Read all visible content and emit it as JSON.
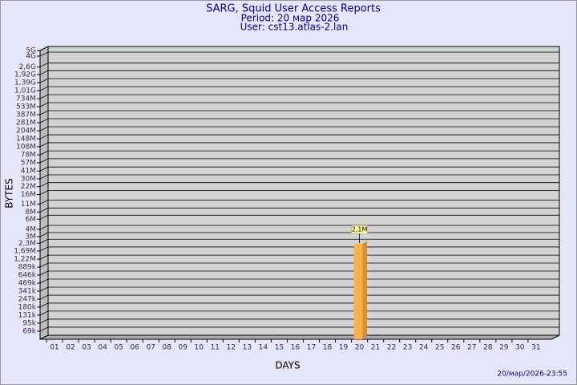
{
  "chart_data": {
    "type": "bar",
    "title": "SARG, Squid User Access Reports",
    "subtitle": [
      "Period: 20 мар 2026",
      "User: cst13.atlas-2.lan"
    ],
    "x_label": "DAYS",
    "y_label": "BYTES",
    "timestamp": "20/мар/2026-23:55",
    "categories": [
      "01",
      "02",
      "03",
      "04",
      "05",
      "06",
      "07",
      "08",
      "09",
      "10",
      "11",
      "12",
      "13",
      "14",
      "15",
      "16",
      "17",
      "18",
      "19",
      "20",
      "21",
      "22",
      "23",
      "24",
      "25",
      "26",
      "27",
      "28",
      "29",
      "30",
      "31"
    ],
    "values": [
      null,
      null,
      null,
      null,
      null,
      null,
      null,
      null,
      null,
      null,
      null,
      null,
      null,
      null,
      null,
      null,
      null,
      null,
      null,
      2100000,
      null,
      null,
      null,
      null,
      null,
      null,
      null,
      null,
      null,
      null,
      null
    ],
    "value_labels": [
      null,
      null,
      null,
      null,
      null,
      null,
      null,
      null,
      null,
      null,
      null,
      null,
      null,
      null,
      null,
      null,
      null,
      null,
      null,
      "2,1M",
      null,
      null,
      null,
      null,
      null,
      null,
      null,
      null,
      null,
      null,
      null
    ],
    "color": "#f6b24f",
    "log_scale": true,
    "grid": true,
    "ylim": [
      50000,
      5000000000
    ],
    "yticks": [
      {
        "value": 69000,
        "label": "69k"
      },
      {
        "value": 95000,
        "label": "95k"
      },
      {
        "value": 131000,
        "label": "131k"
      },
      {
        "value": 180000,
        "label": "180k"
      },
      {
        "value": 247000,
        "label": "247k"
      },
      {
        "value": 341000,
        "label": "341k"
      },
      {
        "value": 469000,
        "label": "469k"
      },
      {
        "value": 646000,
        "label": "646k"
      },
      {
        "value": 889000,
        "label": "889k"
      },
      {
        "value": 1220000,
        "label": "1,22M"
      },
      {
        "value": 1690000,
        "label": "1,69M"
      },
      {
        "value": 2300000,
        "label": "2,3M"
      },
      {
        "value": 3000000,
        "label": "3M"
      },
      {
        "value": 4000000,
        "label": "4M"
      },
      {
        "value": 6000000,
        "label": "6M"
      },
      {
        "value": 8000000,
        "label": "8M"
      },
      {
        "value": 11000000,
        "label": "11M"
      },
      {
        "value": 16000000,
        "label": "16M"
      },
      {
        "value": 22000000,
        "label": "22M"
      },
      {
        "value": 30000000,
        "label": "30M"
      },
      {
        "value": 41000000,
        "label": "41M"
      },
      {
        "value": 57000000,
        "label": "57M"
      },
      {
        "value": 78000000,
        "label": "78M"
      },
      {
        "value": 108000000,
        "label": "108M"
      },
      {
        "value": 148000000,
        "label": "148M"
      },
      {
        "value": 204000000,
        "label": "204M"
      },
      {
        "value": 281000000,
        "label": "281M"
      },
      {
        "value": 387000000,
        "label": "387M"
      },
      {
        "value": 533000000,
        "label": "533M"
      },
      {
        "value": 734000000,
        "label": "734M"
      },
      {
        "value": 1010000000,
        "label": "1,01G"
      },
      {
        "value": 1390000000,
        "label": "1,39G"
      },
      {
        "value": 1920000000,
        "label": "1,92G"
      },
      {
        "value": 2600000000,
        "label": "2,6G"
      },
      {
        "value": 4000000000,
        "label": "4G"
      },
      {
        "value": 5000000000,
        "label": "5G"
      }
    ]
  }
}
